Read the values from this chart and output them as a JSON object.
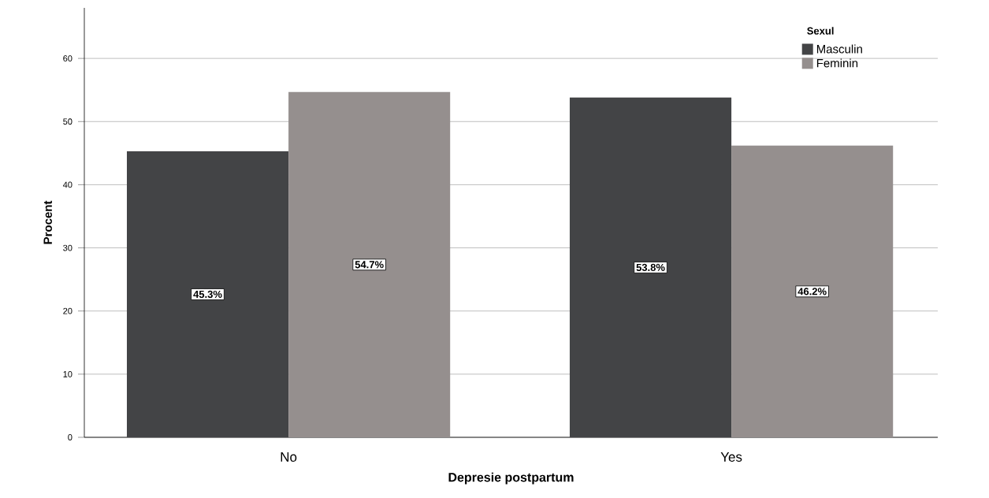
{
  "chart_data": {
    "type": "bar",
    "xlabel": "Depresie postpartum",
    "ylabel": "Procent",
    "legend_title": "Sexul",
    "categories": [
      "No",
      "Yes"
    ],
    "series": [
      {
        "name": "Masculin",
        "color": "#434446",
        "values": [
          45.3,
          53.8
        ],
        "value_labels": [
          "45.3%",
          "53.8%"
        ]
      },
      {
        "name": "Feminin",
        "color": "#958f8e",
        "values": [
          54.7,
          46.2
        ],
        "value_labels": [
          "54.7%",
          "46.2%"
        ]
      }
    ],
    "ylim": [
      0,
      68
    ],
    "yticks": [
      0,
      10,
      20,
      30,
      40,
      50,
      60
    ],
    "grid": "y",
    "legend": "top right"
  }
}
